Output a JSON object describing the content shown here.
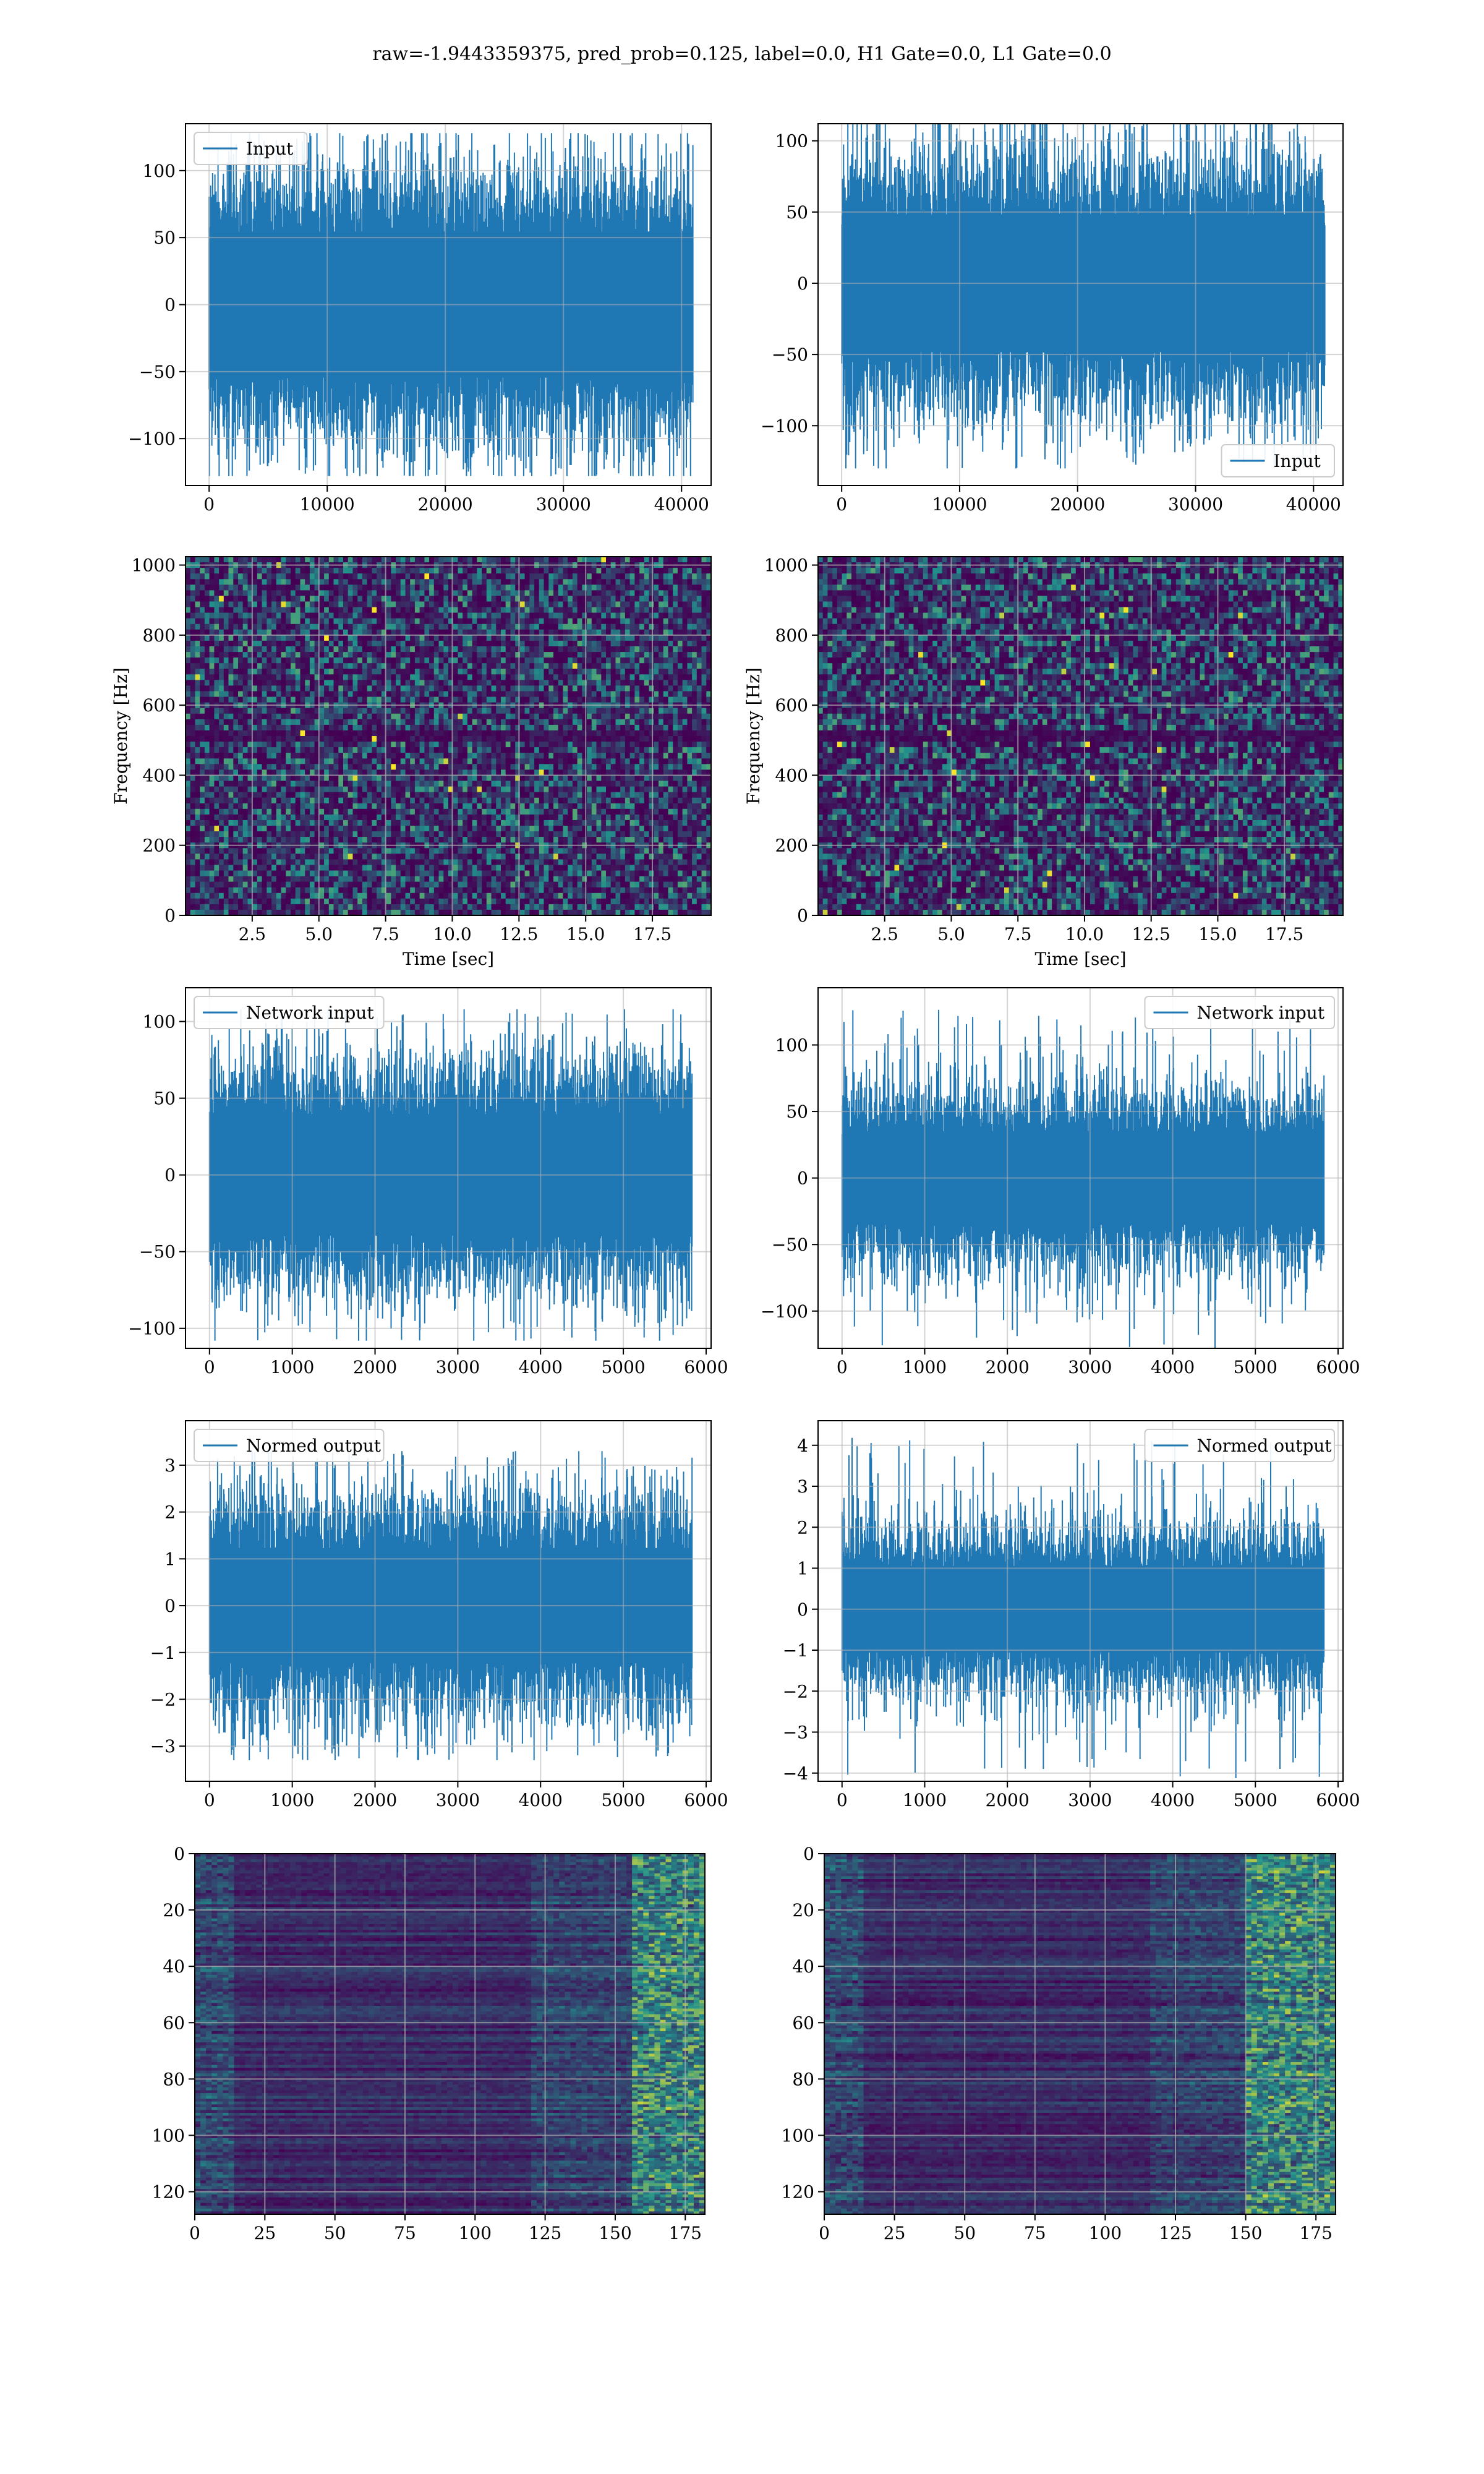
{
  "figure": {
    "suptitle": "raw=-1.9443359375, pred_prob=0.125, label=0.0, H1 Gate=0.0, L1 Gate=0.0",
    "colors": {
      "line": "#1f77b4",
      "grid": "#b0b0b0",
      "spec_low": "#440154",
      "spec_mid": "#21918c",
      "spec_high": "#fde725"
    }
  },
  "chart_data": [
    {
      "id": "input-left",
      "type": "line",
      "legend": "Input",
      "legend_loc": "upper left",
      "xlim": [
        -2000,
        42500
      ],
      "ylim": [
        -135,
        135
      ],
      "xticks": [
        0,
        10000,
        20000,
        30000,
        40000
      ],
      "xticklabels": [
        "0",
        "10000",
        "20000",
        "30000",
        "40000"
      ],
      "yticks": [
        -100,
        -50,
        0,
        50,
        100
      ],
      "yticklabels": [
        "−100",
        "−50",
        "0",
        "50",
        "100"
      ],
      "x_range": [
        0,
        40960
      ],
      "core_amp": 62,
      "peak_amp": 128,
      "grid": true
    },
    {
      "id": "input-right",
      "type": "line",
      "legend": "Input",
      "legend_loc": "lower right",
      "xlim": [
        -2000,
        42500
      ],
      "ylim": [
        -142,
        112
      ],
      "xticks": [
        0,
        10000,
        20000,
        30000,
        40000
      ],
      "xticklabels": [
        "0",
        "10000",
        "20000",
        "30000",
        "40000"
      ],
      "yticks": [
        -100,
        -50,
        0,
        50,
        100
      ],
      "yticklabels": [
        "−100",
        "−50",
        "0",
        "50",
        "100"
      ],
      "x_range": [
        0,
        40960
      ],
      "core_amp": 55,
      "peak_amp": 130,
      "grid": true
    },
    {
      "id": "spec-left",
      "type": "heatmap",
      "xlabel": "Time [sec]",
      "ylabel": "Frequency [Hz]",
      "xlim": [
        0,
        19.7
      ],
      "ylim": [
        0,
        1024
      ],
      "xticks": [
        2.5,
        5.0,
        7.5,
        10.0,
        12.5,
        15.0,
        17.5
      ],
      "xticklabels": [
        "2.5",
        "5.0",
        "7.5",
        "10.0",
        "12.5",
        "15.0",
        "17.5"
      ],
      "yticks": [
        0,
        200,
        400,
        600,
        800,
        1000
      ],
      "yticklabels": [
        "0",
        "200",
        "400",
        "600",
        "800",
        "1000"
      ],
      "dark_band_hz": [
        490,
        530
      ],
      "grid": true
    },
    {
      "id": "spec-right",
      "type": "heatmap",
      "xlabel": "Time [sec]",
      "ylabel": "Frequency [Hz]",
      "xlim": [
        0,
        19.7
      ],
      "ylim": [
        0,
        1024
      ],
      "xticks": [
        2.5,
        5.0,
        7.5,
        10.0,
        12.5,
        15.0,
        17.5
      ],
      "xticklabels": [
        "2.5",
        "5.0",
        "7.5",
        "10.0",
        "12.5",
        "15.0",
        "17.5"
      ],
      "yticks": [
        0,
        200,
        400,
        600,
        800,
        1000
      ],
      "yticklabels": [
        "0",
        "200",
        "400",
        "600",
        "800",
        "1000"
      ],
      "dark_band_hz": [
        490,
        530
      ],
      "grid": true
    },
    {
      "id": "net-left",
      "type": "line",
      "legend": "Network input",
      "legend_loc": "upper left",
      "xlim": [
        -290,
        6060
      ],
      "ylim": [
        -113,
        122
      ],
      "xticks": [
        0,
        1000,
        2000,
        3000,
        4000,
        5000,
        6000
      ],
      "xticklabels": [
        "0",
        "1000",
        "2000",
        "3000",
        "4000",
        "5000",
        "6000"
      ],
      "yticks": [
        -100,
        -50,
        0,
        50,
        100
      ],
      "yticklabels": [
        "−100",
        "−50",
        "0",
        "50",
        "100"
      ],
      "x_range": [
        0,
        5830
      ],
      "core_amp": 45,
      "peak_amp": 108,
      "grid": true
    },
    {
      "id": "net-right",
      "type": "line",
      "legend": "Network input",
      "legend_loc": "upper right",
      "xlim": [
        -290,
        6060
      ],
      "ylim": [
        -128,
        143
      ],
      "xticks": [
        0,
        1000,
        2000,
        3000,
        4000,
        5000,
        6000
      ],
      "xticklabels": [
        "0",
        "1000",
        "2000",
        "3000",
        "4000",
        "5000",
        "6000"
      ],
      "yticks": [
        -100,
        -50,
        0,
        50,
        100
      ],
      "yticklabels": [
        "−100",
        "−50",
        "0",
        "50",
        "100"
      ],
      "x_range": [
        0,
        5830
      ],
      "core_amp": 40,
      "peak_amp": 128,
      "grid": true
    },
    {
      "id": "norm-left",
      "type": "line",
      "legend": "Normed output",
      "legend_loc": "upper left",
      "xlim": [
        -290,
        6060
      ],
      "ylim": [
        -3.75,
        3.95
      ],
      "xticks": [
        0,
        1000,
        2000,
        3000,
        4000,
        5000,
        6000
      ],
      "xticklabels": [
        "0",
        "1000",
        "2000",
        "3000",
        "4000",
        "5000",
        "6000"
      ],
      "yticks": [
        -3,
        -2,
        -1,
        0,
        1,
        2,
        3
      ],
      "yticklabels": [
        "−3",
        "−2",
        "−1",
        "0",
        "1",
        "2",
        "3"
      ],
      "x_range": [
        0,
        5830
      ],
      "core_amp": 1.4,
      "peak_amp": 3.3,
      "grid": true
    },
    {
      "id": "norm-right",
      "type": "line",
      "legend": "Normed output",
      "legend_loc": "upper right",
      "xlim": [
        -290,
        6060
      ],
      "ylim": [
        -4.2,
        4.6
      ],
      "xticks": [
        0,
        1000,
        2000,
        3000,
        4000,
        5000,
        6000
      ],
      "xticklabels": [
        "0",
        "1000",
        "2000",
        "3000",
        "4000",
        "5000",
        "6000"
      ],
      "yticks": [
        -4,
        -3,
        -2,
        -1,
        0,
        1,
        2,
        3,
        4
      ],
      "yticklabels": [
        "−4",
        "−3",
        "−2",
        "−1",
        "0",
        "1",
        "2",
        "3",
        "4"
      ],
      "x_range": [
        0,
        5830
      ],
      "core_amp": 1.2,
      "peak_amp": 4.2,
      "grid": true
    },
    {
      "id": "feat-left",
      "type": "heatmap",
      "origin": "upper",
      "xlim": [
        0,
        182
      ],
      "ylim": [
        128,
        0
      ],
      "xticks": [
        0,
        25,
        50,
        75,
        100,
        125,
        150,
        175
      ],
      "xticklabels": [
        "0",
        "25",
        "50",
        "75",
        "100",
        "125",
        "150",
        "175"
      ],
      "yticks": [
        0,
        20,
        40,
        60,
        80,
        100,
        120
      ],
      "yticklabels": [
        "0",
        "20",
        "40",
        "60",
        "80",
        "100",
        "120"
      ],
      "bright_columns": [
        155,
        182
      ],
      "grid": true
    },
    {
      "id": "feat-right",
      "type": "heatmap",
      "origin": "upper",
      "xlim": [
        0,
        182
      ],
      "ylim": [
        128,
        0
      ],
      "xticks": [
        0,
        25,
        50,
        75,
        100,
        125,
        150,
        175
      ],
      "xticklabels": [
        "0",
        "25",
        "50",
        "75",
        "100",
        "125",
        "150",
        "175"
      ],
      "yticks": [
        0,
        20,
        40,
        60,
        80,
        100,
        120
      ],
      "yticklabels": [
        "0",
        "20",
        "40",
        "60",
        "80",
        "100",
        "120"
      ],
      "bright_columns": [
        150,
        182
      ],
      "grid": true
    }
  ]
}
